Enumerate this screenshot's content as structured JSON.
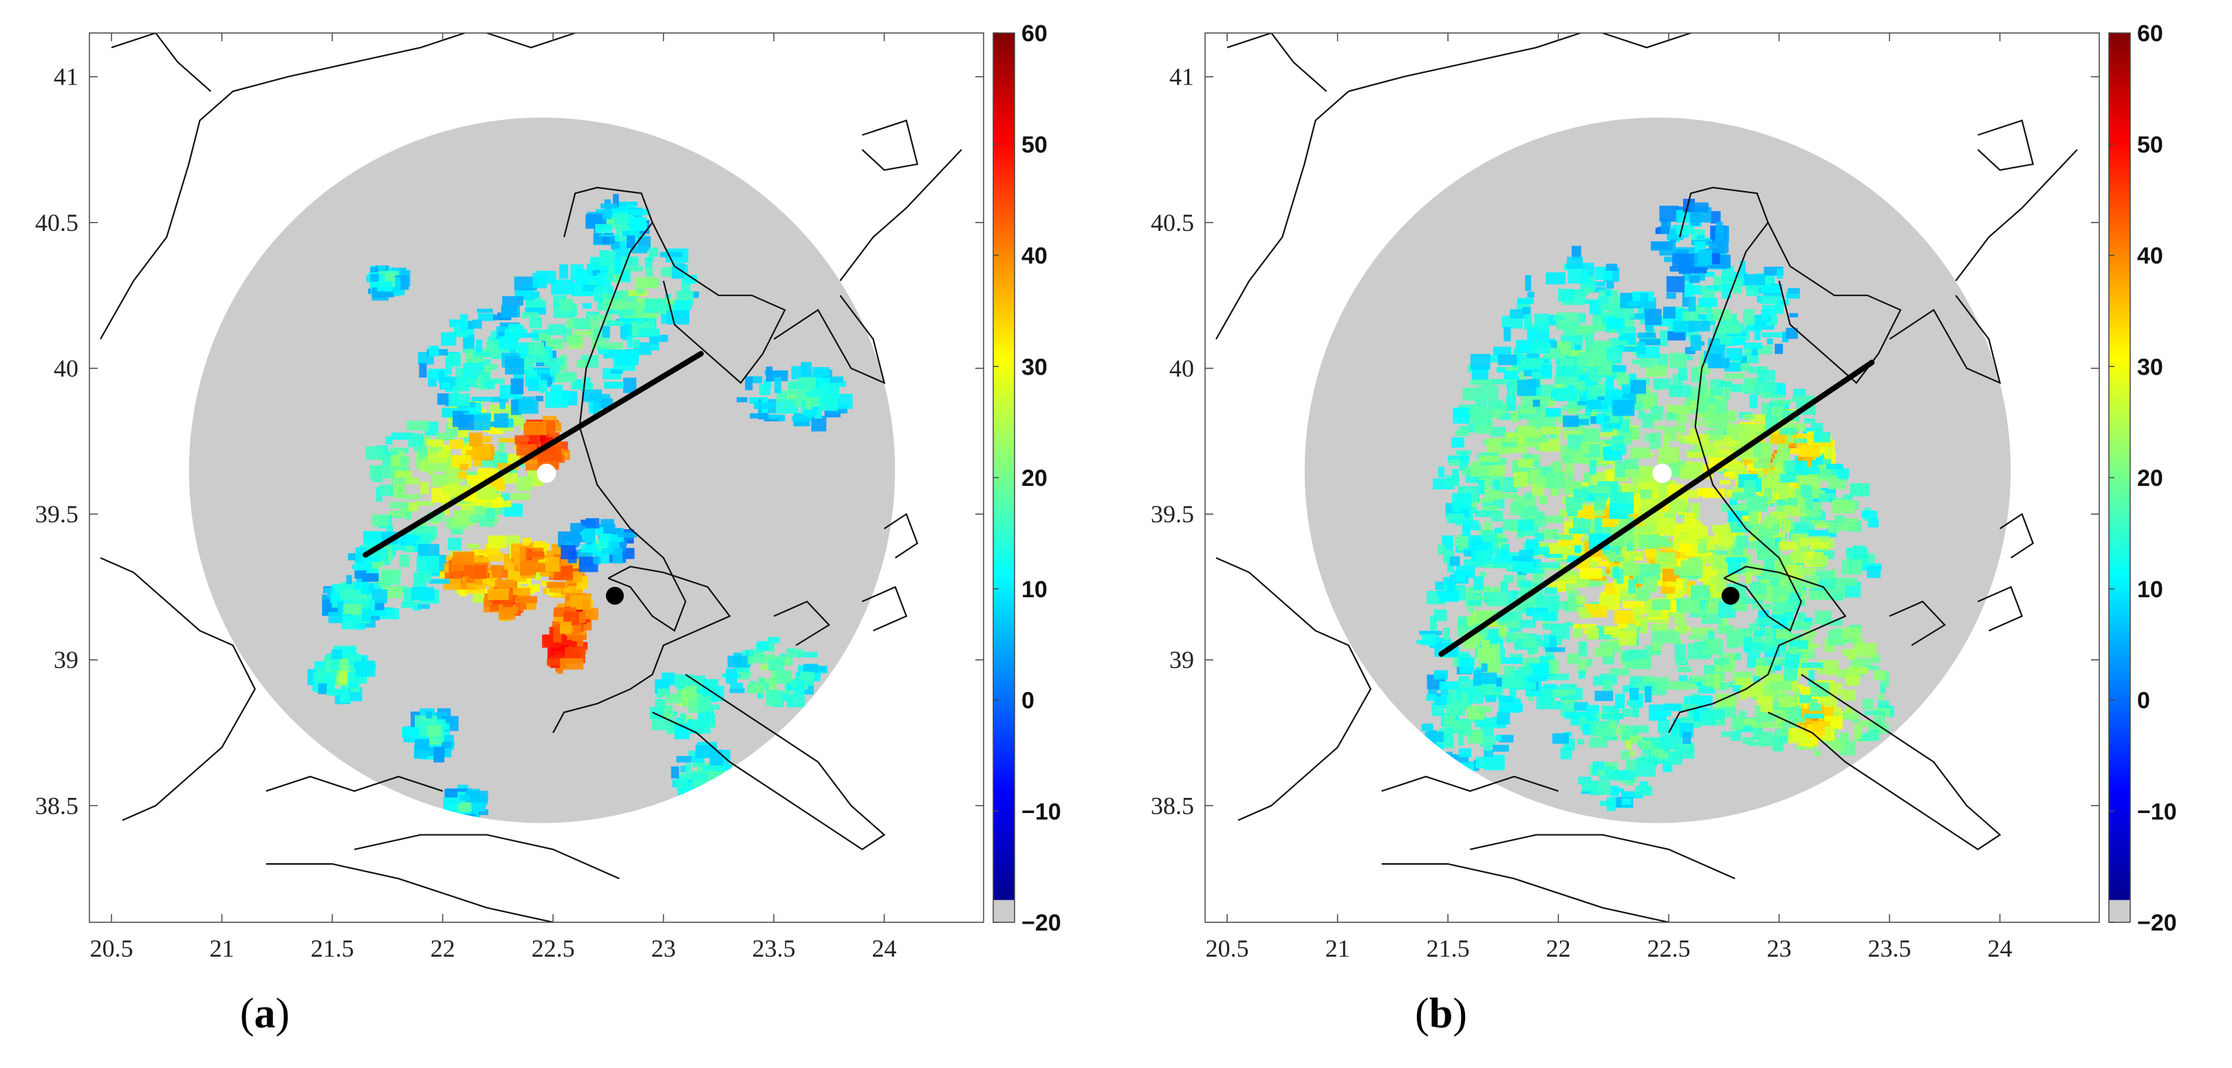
{
  "figure": {
    "panels": [
      {
        "id": "a",
        "caption_label": "a",
        "x_ticks": [
          "20.5",
          "21",
          "21.5",
          "22",
          "22.5",
          "23",
          "23.5",
          "24"
        ],
        "y_ticks": [
          "41",
          "40.5",
          "40",
          "39.5",
          "39",
          "38.5"
        ],
        "colorbar_ticks": [
          "60",
          "50",
          "40",
          "30",
          "20",
          "10",
          "0",
          "−10",
          "−20"
        ]
      },
      {
        "id": "b",
        "caption_label": "b",
        "x_ticks": [
          "20.5",
          "21",
          "21.5",
          "22",
          "22.5",
          "23",
          "23.5",
          "24"
        ],
        "y_ticks": [
          "41",
          "40.5",
          "40",
          "39.5",
          "39",
          "38.5"
        ],
        "colorbar_ticks": [
          "60",
          "50",
          "40",
          "30",
          "20",
          "10",
          "0",
          "−10",
          "−20"
        ]
      }
    ]
  },
  "map_data": {
    "x_range": [
      20.4,
      24.45
    ],
    "y_range": [
      38.1,
      41.15
    ],
    "colorbar_range": [
      -20,
      60
    ],
    "colormap": [
      "#00008f",
      "#0000ff",
      "#0080ff",
      "#00ffff",
      "#80ff80",
      "#ffff00",
      "#ff8000",
      "#ff0000",
      "#800000"
    ],
    "no_data_color": "#cccccc",
    "radar_center": [
      22.45,
      39.65
    ],
    "radar_range_deg": 2.05,
    "markers": {
      "radar_site": {
        "lon": 22.47,
        "lat": 39.64,
        "color": "#ffffff"
      },
      "target_site": {
        "lon": 22.78,
        "lat": 39.22,
        "color": "#000000"
      }
    },
    "cross_sections": [
      {
        "from": [
          21.65,
          39.36
        ],
        "to": [
          23.17,
          40.05
        ]
      },
      {
        "from": [
          21.47,
          39.02
        ],
        "to": [
          23.42,
          40.02
        ]
      }
    ]
  }
}
